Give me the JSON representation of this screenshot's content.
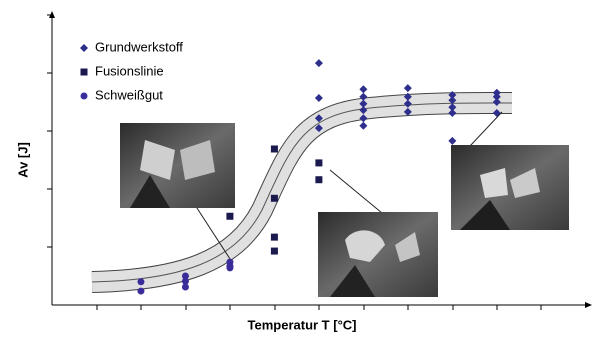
{
  "chart_data": {
    "type": "scatter",
    "xlabel": "Temperatur T [°C]",
    "ylabel": "Av [J]",
    "xlim": [
      0,
      11.87
    ],
    "ylim": [
      0,
      5
    ],
    "series": [
      {
        "name": "Grundwerkstoff",
        "color": "#2e2e8c",
        "marker": "diamond",
        "x": [
          6,
          6,
          6,
          6,
          7,
          7,
          7,
          7,
          7,
          7,
          8,
          8,
          8,
          8,
          9,
          9,
          9,
          9,
          9,
          10,
          10,
          10,
          10
        ],
        "values": [
          4.17,
          3.57,
          3.22,
          3.05,
          3.72,
          3.59,
          3.47,
          3.36,
          3.22,
          3.09,
          3.74,
          3.59,
          3.47,
          3.33,
          3.62,
          3.53,
          3.41,
          3.31,
          2.83,
          3.66,
          3.59,
          3.5,
          3.31
        ]
      },
      {
        "name": "Fusionslinie",
        "color": "#1a1a4e",
        "marker": "square",
        "x": [
          4,
          5,
          5,
          5,
          5,
          6,
          6
        ],
        "values": [
          1.53,
          2.69,
          1.84,
          1.17,
          0.93,
          2.45,
          2.16
        ]
      },
      {
        "name": "Schweißgut",
        "color": "#3a2d9a",
        "marker": "circle",
        "x": [
          2,
          2,
          3,
          3,
          3,
          4,
          4,
          4
        ],
        "values": [
          0.4,
          0.24,
          0.5,
          0.41,
          0.31,
          0.74,
          0.67,
          0.64
        ]
      }
    ]
  }
}
